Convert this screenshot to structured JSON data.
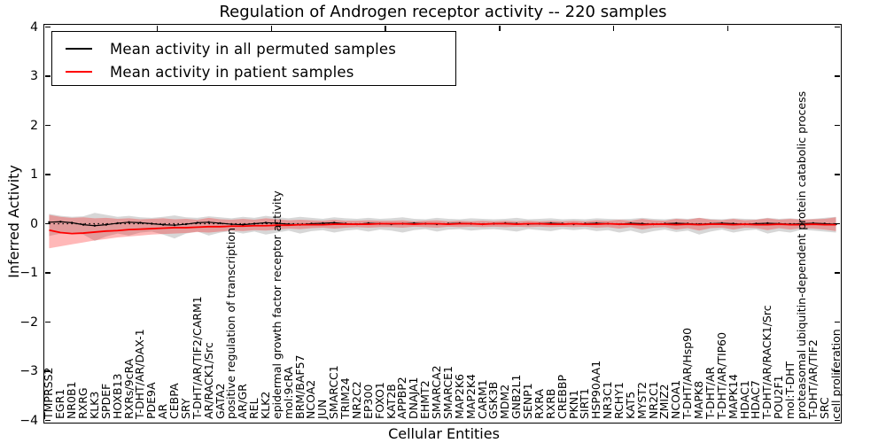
{
  "figure": {
    "title": "Regulation of Androgen receptor activity -- 220 samples",
    "xlabel": "Cellular Entities",
    "ylabel": "Inferred Activity"
  },
  "legend": {
    "entries": [
      {
        "label": "Mean activity in all permuted samples",
        "color": "#000000"
      },
      {
        "label": "Mean activity in patient samples",
        "color": "#ff0000"
      }
    ]
  },
  "chart_data": {
    "type": "line",
    "title": "Regulation of Androgen receptor activity -- 220 samples",
    "xlabel": "Cellular Entities",
    "ylabel": "Inferred Activity",
    "ylim": [
      -4,
      4
    ],
    "yticks": [
      4,
      3,
      2,
      1,
      0,
      -1,
      -2,
      -3,
      -4
    ],
    "x_major_tick_every": 10,
    "grid": false,
    "legend_position": "upper left",
    "zero_reference_line": true,
    "categories": [
      "TMPRSS2",
      "EGR1",
      "NR0B1",
      "RXRG",
      "KLK3",
      "SPDEF",
      "HOXB13",
      "RXRs/9cRA",
      "T-DHT/AR/DAX-1",
      "PDE9A",
      "AR",
      "CEBPA",
      "SRY",
      "T-DHT/AR/TIF2/CARM1",
      "AR/RACK1/Src",
      "GATA2",
      "positive regulation of transcription",
      "AR/GR",
      "REL",
      "KLK2",
      "epidermal growth factor receptor activity",
      "mol:9cRA",
      "BRM/BAF57",
      "NCOA2",
      "JUN",
      "SMARCC1",
      "TRIM24",
      "NR2C2",
      "EP300",
      "FOXO1",
      "KAT2B",
      "APPBP2",
      "DNAJA1",
      "EHMT2",
      "SMARCA2",
      "SMARCE1",
      "MAP2K6",
      "MAP2K4",
      "CARM1",
      "GSK3B",
      "MDM2",
      "GNB2L1",
      "SENP1",
      "RXRA",
      "RXRB",
      "CREBBP",
      "PKN1",
      "SIRT1",
      "HSP90AA1",
      "NR3C1",
      "RCHY1",
      "KAT5",
      "MYST2",
      "NR2C1",
      "ZMIZ2",
      "NCOA1",
      "T-DHT/AR/Hsp90",
      "MAPK8",
      "T-DHT/AR",
      "T-DHT/AR/TIP60",
      "MAPK14",
      "HDAC1",
      "HDAC7",
      "T-DHT/AR/RACK1/Src",
      "POU2F1",
      "mol:T-DHT",
      "proteasomal ubiquitin-dependent protein catabolic process",
      "T-DHT/AR/TIF2",
      "SRC",
      "cell proliferation"
    ],
    "series": [
      {
        "name": "Mean activity in all permuted samples",
        "color": "#000000",
        "line_width": 1.2,
        "markers": true,
        "band_fill": "rgba(130,130,130,0.32)",
        "values": [
          0.03,
          0.04,
          0.02,
          -0.02,
          -0.04,
          -0.02,
          0.01,
          0.03,
          0.02,
          0.0,
          -0.02,
          -0.03,
          -0.01,
          0.02,
          0.03,
          0.01,
          -0.01,
          -0.02,
          0.0,
          0.02,
          0.01,
          -0.01,
          -0.02,
          0.0,
          0.01,
          0.02,
          0.0,
          -0.01,
          0.01,
          0.0,
          -0.01,
          0.0,
          0.01,
          0.0,
          -0.01,
          0.0,
          0.01,
          0.0,
          -0.01,
          0.0,
          0.01,
          0.0,
          -0.01,
          0.0,
          0.01,
          0.0,
          -0.01,
          0.0,
          0.01,
          0.0,
          -0.01,
          0.01,
          0.0,
          -0.01,
          0.0,
          0.01,
          0.0,
          -0.01,
          0.0,
          0.01,
          0.0,
          -0.01,
          0.0,
          0.01,
          0.0,
          -0.01,
          0.0,
          0.01,
          0.0,
          -0.01
        ],
        "band_upper": [
          0.2,
          0.16,
          0.14,
          0.15,
          0.22,
          0.18,
          0.14,
          0.16,
          0.13,
          0.12,
          0.14,
          0.17,
          0.13,
          0.12,
          0.15,
          0.13,
          0.11,
          0.14,
          0.12,
          0.16,
          0.13,
          0.11,
          0.14,
          0.12,
          0.1,
          0.13,
          0.11,
          0.1,
          0.12,
          0.1,
          0.11,
          0.13,
          0.1,
          0.09,
          0.12,
          0.1,
          0.09,
          0.11,
          0.1,
          0.09,
          0.1,
          0.12,
          0.09,
          0.1,
          0.11,
          0.09,
          0.1,
          0.09,
          0.11,
          0.1,
          0.09,
          0.1,
          0.12,
          0.1,
          0.09,
          0.11,
          0.1,
          0.12,
          0.1,
          0.09,
          0.11,
          0.1,
          0.09,
          0.12,
          0.1,
          0.11,
          0.09,
          0.1,
          0.12,
          0.14
        ],
        "band_lower": [
          -0.25,
          -0.2,
          -0.18,
          -0.22,
          -0.35,
          -0.26,
          -0.2,
          -0.24,
          -0.18,
          -0.16,
          -0.22,
          -0.3,
          -0.2,
          -0.16,
          -0.24,
          -0.18,
          -0.15,
          -0.2,
          -0.16,
          -0.22,
          -0.18,
          -0.14,
          -0.2,
          -0.15,
          -0.13,
          -0.18,
          -0.14,
          -0.12,
          -0.16,
          -0.12,
          -0.14,
          -0.18,
          -0.13,
          -0.11,
          -0.16,
          -0.12,
          -0.11,
          -0.14,
          -0.12,
          -0.11,
          -0.13,
          -0.16,
          -0.11,
          -0.13,
          -0.15,
          -0.11,
          -0.13,
          -0.11,
          -0.15,
          -0.13,
          -0.18,
          -0.14,
          -0.2,
          -0.15,
          -0.12,
          -0.17,
          -0.14,
          -0.22,
          -0.16,
          -0.12,
          -0.18,
          -0.14,
          -0.12,
          -0.2,
          -0.15,
          -0.18,
          -0.12,
          -0.14,
          -0.16,
          -0.18
        ]
      },
      {
        "name": "Mean activity in patient samples",
        "color": "#ff0000",
        "line_width": 1.8,
        "markers": false,
        "band_fill": "rgba(255,0,0,0.28)",
        "values": [
          -0.13,
          -0.18,
          -0.2,
          -0.19,
          -0.17,
          -0.15,
          -0.14,
          -0.12,
          -0.11,
          -0.1,
          -0.09,
          -0.08,
          -0.08,
          -0.07,
          -0.06,
          -0.06,
          -0.05,
          -0.05,
          -0.04,
          -0.04,
          -0.03,
          -0.03,
          -0.02,
          -0.02,
          -0.02,
          -0.01,
          -0.01,
          -0.01,
          -0.01,
          0.0,
          0.0,
          0.0,
          -0.01,
          0.0,
          0.0,
          -0.01,
          0.0,
          0.0,
          -0.01,
          0.0,
          0.0,
          -0.01,
          0.0,
          0.0,
          -0.01,
          -0.01,
          0.0,
          -0.01,
          -0.01,
          0.0,
          -0.01,
          -0.01,
          -0.02,
          -0.01,
          -0.01,
          -0.02,
          -0.01,
          -0.02,
          -0.01,
          -0.01,
          -0.02,
          -0.01,
          -0.02,
          -0.02,
          -0.01,
          -0.02,
          -0.02,
          -0.01,
          -0.02,
          -0.02
        ],
        "band_upper": [
          0.18,
          0.14,
          0.12,
          0.13,
          0.11,
          0.12,
          0.1,
          0.11,
          0.09,
          0.1,
          0.11,
          0.09,
          0.1,
          0.08,
          0.12,
          0.09,
          0.08,
          0.1,
          0.08,
          0.11,
          0.09,
          0.07,
          0.08,
          0.07,
          0.06,
          0.08,
          0.06,
          0.06,
          0.07,
          0.06,
          0.06,
          0.07,
          0.05,
          0.06,
          0.07,
          0.05,
          0.06,
          0.05,
          0.06,
          0.05,
          0.06,
          0.05,
          0.06,
          0.05,
          0.06,
          0.05,
          0.06,
          0.05,
          0.07,
          0.06,
          0.08,
          0.06,
          0.1,
          0.07,
          0.06,
          0.1,
          0.08,
          0.12,
          0.08,
          0.07,
          0.1,
          0.07,
          0.08,
          0.11,
          0.08,
          0.1,
          0.08,
          0.09,
          0.1,
          0.13
        ],
        "band_lower": [
          -0.5,
          -0.46,
          -0.42,
          -0.38,
          -0.34,
          -0.31,
          -0.28,
          -0.26,
          -0.24,
          -0.22,
          -0.21,
          -0.2,
          -0.19,
          -0.17,
          -0.18,
          -0.16,
          -0.14,
          -0.15,
          -0.13,
          -0.14,
          -0.12,
          -0.1,
          -0.11,
          -0.09,
          -0.08,
          -0.1,
          -0.08,
          -0.07,
          -0.08,
          -0.07,
          -0.07,
          -0.08,
          -0.06,
          -0.07,
          -0.08,
          -0.06,
          -0.07,
          -0.06,
          -0.07,
          -0.06,
          -0.07,
          -0.06,
          -0.07,
          -0.06,
          -0.07,
          -0.06,
          -0.07,
          -0.06,
          -0.08,
          -0.07,
          -0.1,
          -0.07,
          -0.12,
          -0.08,
          -0.07,
          -0.12,
          -0.09,
          -0.14,
          -0.09,
          -0.08,
          -0.12,
          -0.08,
          -0.09,
          -0.13,
          -0.09,
          -0.12,
          -0.09,
          -0.1,
          -0.12,
          -0.15
        ]
      }
    ]
  }
}
